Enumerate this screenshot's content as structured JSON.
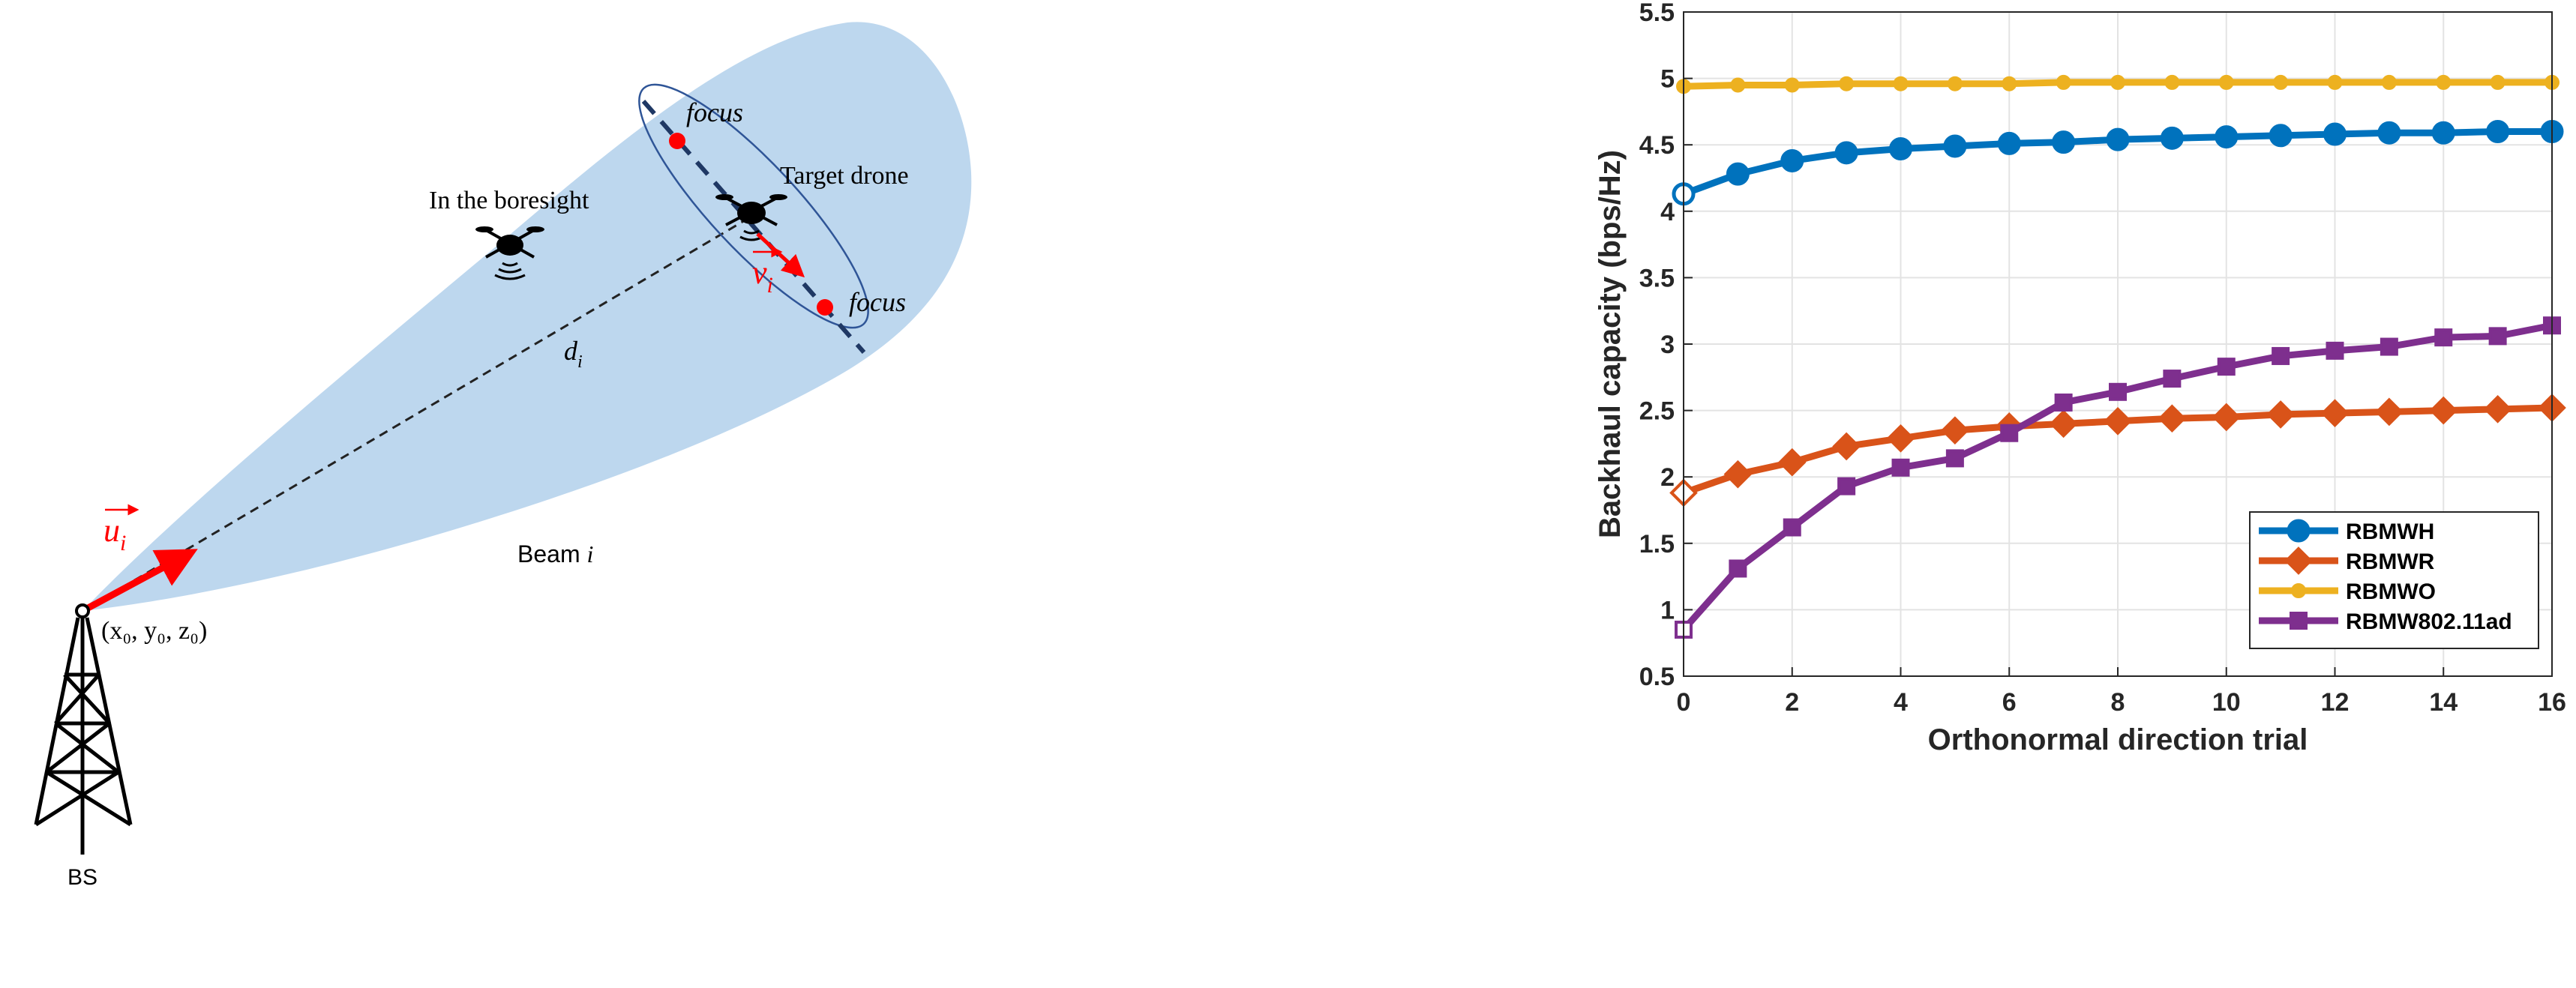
{
  "diagram": {
    "label_boresight": "In the boresight",
    "label_target": "Target drone",
    "label_focus_top": "focus",
    "label_focus_bottom": "focus",
    "label_distance_main": "d",
    "label_distance_sub": "i",
    "label_u_main": "u",
    "label_u_sub": "i",
    "label_v_main": "v",
    "label_v_sub": "i",
    "label_beam_prefix": "Beam ",
    "label_beam_index": "i",
    "label_coords": "(x₀, y₀, z₀)",
    "label_bs": "BS",
    "colors": {
      "beam_fill": "#bdd7ee",
      "arrow_red": "#ff0000",
      "ellipse_stroke": "#2f5597",
      "focus_dot": "#ff0000"
    }
  },
  "chart_data": {
    "type": "line",
    "xlabel": "Orthonormal direction trial",
    "ylabel": "Backhaul capacity (bps/Hz)",
    "xlim": [
      0,
      16
    ],
    "ylim": [
      0.5,
      5.5
    ],
    "xticks": [
      0,
      2,
      4,
      6,
      8,
      10,
      12,
      14,
      16
    ],
    "yticks": [
      0.5,
      1,
      1.5,
      2,
      2.5,
      3,
      3.5,
      4,
      4.5,
      5,
      5.5
    ],
    "xtick_labels": [
      "0",
      "2",
      "4",
      "6",
      "8",
      "10",
      "12",
      "14",
      "16"
    ],
    "ytick_labels": [
      "0.5",
      "1",
      "1.5",
      "2",
      "2.5",
      "3",
      "3.5",
      "4",
      "4.5",
      "5",
      "5.5"
    ],
    "grid": true,
    "legend_position": "lower-right",
    "x": [
      0,
      1,
      2,
      3,
      4,
      5,
      6,
      7,
      8,
      9,
      10,
      11,
      12,
      13,
      14,
      15,
      16
    ],
    "series": [
      {
        "name": "RBMWH",
        "color": "#0072bd",
        "marker": "circle",
        "values": [
          4.13,
          4.28,
          4.38,
          4.44,
          4.47,
          4.49,
          4.51,
          4.52,
          4.54,
          4.55,
          4.56,
          4.57,
          4.58,
          4.59,
          4.59,
          4.6,
          4.6
        ]
      },
      {
        "name": "RBMWR",
        "color": "#d95319",
        "marker": "diamond",
        "values": [
          1.88,
          2.02,
          2.11,
          2.23,
          2.29,
          2.35,
          2.38,
          2.4,
          2.42,
          2.44,
          2.45,
          2.47,
          2.48,
          2.49,
          2.5,
          2.51,
          2.52
        ]
      },
      {
        "name": "RBMWO",
        "color": "#edb120",
        "marker": "dot",
        "values": [
          4.94,
          4.95,
          4.95,
          4.96,
          4.96,
          4.96,
          4.96,
          4.97,
          4.97,
          4.97,
          4.97,
          4.97,
          4.97,
          4.97,
          4.97,
          4.97,
          4.97
        ]
      },
      {
        "name": "RBMW802.11ad",
        "color": "#7e2f8e",
        "marker": "square",
        "values": [
          0.85,
          1.31,
          1.62,
          1.93,
          2.07,
          2.14,
          2.33,
          2.56,
          2.64,
          2.74,
          2.83,
          2.91,
          2.95,
          2.98,
          3.05,
          3.06,
          3.14
        ]
      }
    ]
  }
}
